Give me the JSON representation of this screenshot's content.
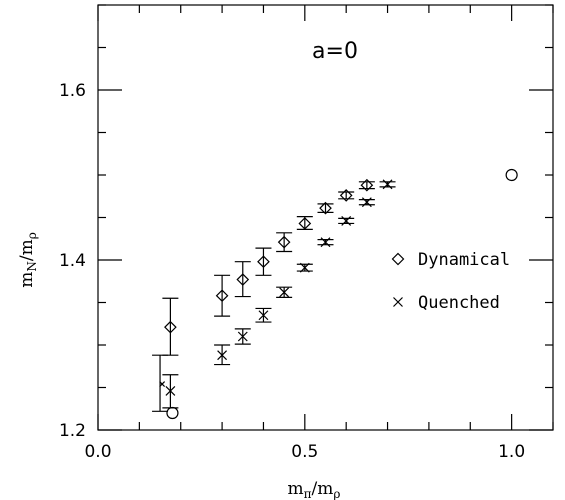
{
  "chart_data": {
    "type": "scatter",
    "title": "a=0",
    "xlabel": {
      "base": "m",
      "sub_num": "π",
      "slash": "/",
      "base2": "m",
      "sub_den": "ρ"
    },
    "ylabel": {
      "base": "m",
      "sub_num": "N",
      "slash": "/",
      "base2": "m",
      "sub_den": "ρ"
    },
    "xlim": [
      0.0,
      1.1
    ],
    "ylim": [
      1.2,
      1.7
    ],
    "x_ticks_labeled": [
      {
        "value": 0.0,
        "label": "0.0"
      },
      {
        "value": 0.5,
        "label": "0.5"
      },
      {
        "value": 1.0,
        "label": "1.0"
      }
    ],
    "y_ticks_labeled": [
      {
        "value": 1.2,
        "label": "1.2"
      },
      {
        "value": 1.4,
        "label": "1.4"
      },
      {
        "value": 1.6,
        "label": "1.6"
      }
    ],
    "x_minor_step": 0.1,
    "y_minor_step": 0.05,
    "grid": false,
    "legend_position": "right",
    "series": [
      {
        "name": "Dynamical",
        "marker": "diamond",
        "points": [
          {
            "x": 0.175,
            "y": 1.321,
            "lo": 1.288,
            "hi": 1.355
          },
          {
            "x": 0.3,
            "y": 1.358,
            "lo": 1.334,
            "hi": 1.382
          },
          {
            "x": 0.35,
            "y": 1.377,
            "lo": 1.357,
            "hi": 1.398
          },
          {
            "x": 0.4,
            "y": 1.398,
            "lo": 1.382,
            "hi": 1.414
          },
          {
            "x": 0.45,
            "y": 1.421,
            "lo": 1.41,
            "hi": 1.432
          },
          {
            "x": 0.5,
            "y": 1.443,
            "lo": 1.436,
            "hi": 1.451
          },
          {
            "x": 0.55,
            "y": 1.461,
            "lo": 1.456,
            "hi": 1.466
          },
          {
            "x": 0.6,
            "y": 1.476,
            "lo": 1.472,
            "hi": 1.48
          },
          {
            "x": 0.65,
            "y": 1.488,
            "lo": 1.484,
            "hi": 1.492
          }
        ]
      },
      {
        "name": "Quenched",
        "marker": "x",
        "points": [
          {
            "x": 0.175,
            "y": 1.246,
            "lo": 1.226,
            "hi": 1.265
          },
          {
            "x": 0.3,
            "y": 1.288,
            "lo": 1.277,
            "hi": 1.3
          },
          {
            "x": 0.35,
            "y": 1.31,
            "lo": 1.301,
            "hi": 1.319
          },
          {
            "x": 0.4,
            "y": 1.335,
            "lo": 1.327,
            "hi": 1.343
          },
          {
            "x": 0.45,
            "y": 1.362,
            "lo": 1.356,
            "hi": 1.368
          },
          {
            "x": 0.5,
            "y": 1.391,
            "lo": 1.387,
            "hi": 1.395
          },
          {
            "x": 0.55,
            "y": 1.421,
            "lo": 1.418,
            "hi": 1.424
          },
          {
            "x": 0.6,
            "y": 1.446,
            "lo": 1.443,
            "hi": 1.449
          },
          {
            "x": 0.65,
            "y": 1.468,
            "lo": 1.465,
            "hi": 1.471
          },
          {
            "x": 0.7,
            "y": 1.489,
            "lo": 1.486,
            "hi": 1.492
          }
        ]
      }
    ],
    "extra_points": [
      {
        "x": 1.0,
        "y": 1.5,
        "marker": "circle"
      },
      {
        "x": 0.18,
        "y": 1.22,
        "marker": "circle"
      }
    ],
    "extra_errorbars": [
      {
        "x": 0.15,
        "lo": 1.222,
        "hi": 1.288
      }
    ],
    "extra_marks": [
      {
        "x": 0.155,
        "y": 1.254,
        "marker": "small-x"
      }
    ]
  }
}
